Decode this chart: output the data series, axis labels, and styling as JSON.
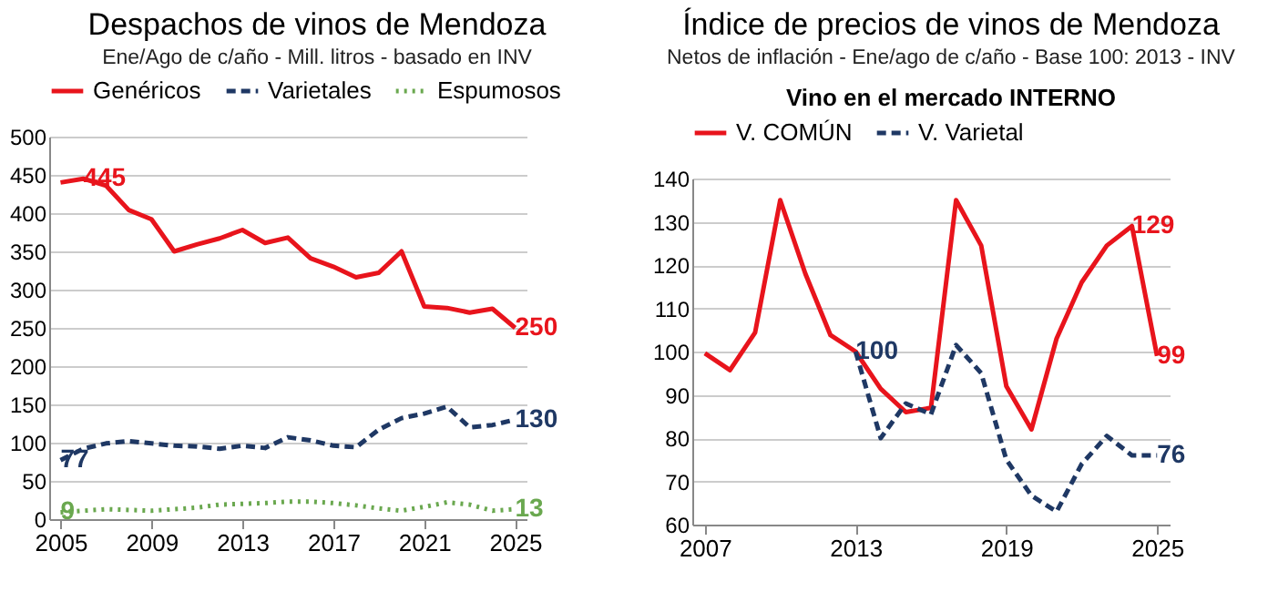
{
  "chart_data": [
    {
      "type": "line",
      "title": "Despachos de vinos de Mendoza",
      "subtitle": "Ene/Ago de c/año - Mill. litros - basado en INV",
      "x": [
        2005,
        2006,
        2007,
        2008,
        2009,
        2010,
        2011,
        2012,
        2013,
        2014,
        2015,
        2016,
        2017,
        2018,
        2019,
        2020,
        2021,
        2022,
        2023,
        2024,
        2025
      ],
      "series": [
        {
          "name": "Genéricos",
          "color": "#e8141c",
          "line_style": "solid",
          "values": [
            440,
            445,
            436,
            404,
            392,
            350,
            359,
            367,
            378,
            361,
            368,
            341,
            330,
            316,
            322,
            350,
            278,
            276,
            270,
            275,
            250
          ]
        },
        {
          "name": "Varietales",
          "color": "#1f3864",
          "line_style": "dashed",
          "values": [
            77,
            92,
            99,
            102,
            99,
            96,
            95,
            92,
            96,
            93,
            107,
            103,
            96,
            94,
            117,
            132,
            138,
            147,
            120,
            123,
            130
          ]
        },
        {
          "name": "Espumosos",
          "color": "#6aa84f",
          "line_style": "dotted",
          "values": [
            9,
            11,
            13,
            12,
            11,
            13,
            15,
            19,
            20,
            21,
            23,
            23,
            21,
            18,
            14,
            11,
            16,
            22,
            19,
            11,
            13
          ]
        }
      ],
      "xlim": [
        2004.5,
        2025.5
      ],
      "xticks": [
        2005,
        2009,
        2013,
        2017,
        2021,
        2025
      ],
      "ylim": [
        0,
        500
      ],
      "yticks": [
        0,
        50,
        100,
        150,
        200,
        250,
        300,
        350,
        400,
        450,
        500
      ],
      "grid": "y",
      "legend": "top",
      "annotations": [
        {
          "text": "445",
          "x": 2006,
          "y": 445
        },
        {
          "text": "250",
          "x": 2025,
          "y": 250
        },
        {
          "text": "77",
          "x": 2005,
          "y": 77
        },
        {
          "text": "130",
          "x": 2025,
          "y": 130
        },
        {
          "text": "9",
          "x": 2005,
          "y": 9
        },
        {
          "text": "13",
          "x": 2025,
          "y": 13
        }
      ]
    },
    {
      "type": "line",
      "title": "Índice de precios de vinos de Mendoza",
      "subtitle": "Netos de inflación - Ene/ago de c/año - Base 100: 2013 - INV",
      "x": [
        2007,
        2008,
        2009,
        2010,
        2011,
        2012,
        2013,
        2014,
        2015,
        2016,
        2017,
        2018,
        2019,
        2020,
        2021,
        2022,
        2023,
        2024,
        2025
      ],
      "series": [
        {
          "name": "V. COMÚN",
          "color": "#e8141c",
          "line_style": "solid",
          "values": [
            99.6,
            95.7,
            104.4,
            135,
            118,
            103.8,
            100,
            91.4,
            86,
            87,
            135,
            124.5,
            92,
            82,
            103,
            116,
            124.5,
            129,
            99
          ]
        },
        {
          "name": "V. Varietal",
          "color": "#1f3864",
          "line_style": "dashed",
          "values": [
            null,
            null,
            null,
            null,
            null,
            null,
            100,
            80,
            88,
            85.5,
            101.5,
            95,
            75,
            66.7,
            63,
            74,
            80.5,
            76,
            76
          ]
        }
      ],
      "xlim": [
        2006.5,
        2025.5
      ],
      "xticks": [
        2007,
        2013,
        2019,
        2025
      ],
      "ylim": [
        60,
        140
      ],
      "yticks": [
        60,
        70,
        80,
        90,
        100,
        110,
        120,
        130,
        140
      ],
      "grid": "y",
      "legend": "top",
      "annotations": [
        "Vino en el mercado INTERNO",
        {
          "text": "129",
          "x": 2024,
          "y": 129
        },
        {
          "text": "99",
          "x": 2025,
          "y": 99
        },
        {
          "text": "100",
          "x": 2013,
          "y": 100
        },
        {
          "text": "76",
          "x": 2025,
          "y": 76
        }
      ]
    }
  ]
}
